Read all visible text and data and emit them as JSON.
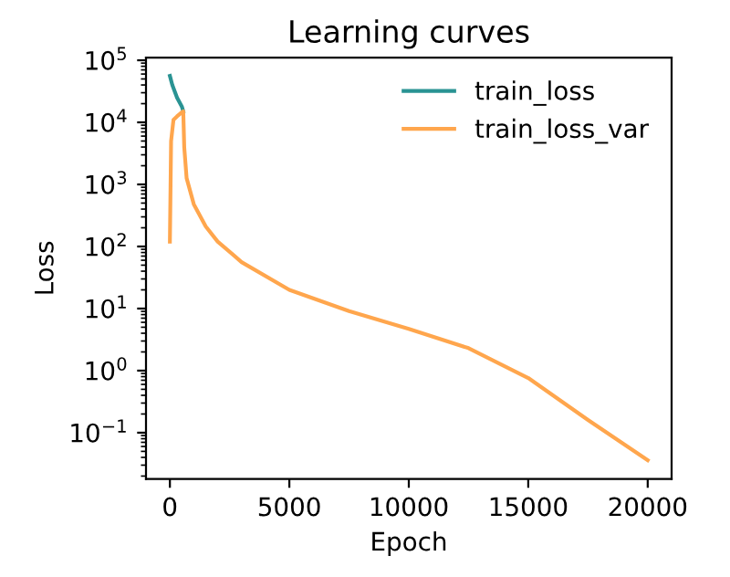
{
  "chart_data": {
    "type": "line",
    "title": "Learning curves",
    "xlabel": "Epoch",
    "ylabel": "Loss",
    "log": "y",
    "xlim": [
      -1000,
      21000
    ],
    "xticks": [
      0,
      5000,
      10000,
      15000,
      20000
    ],
    "ylim": [
      0.018,
      110000
    ],
    "yticks": [
      {
        "value": 0.1,
        "label": "10$^{−1}$"
      },
      {
        "value": 1,
        "label": "10$^{0}$"
      },
      {
        "value": 10,
        "label": "10$^{1}$"
      },
      {
        "value": 100,
        "label": "10$^{2}$"
      },
      {
        "value": 1000,
        "label": "10$^{3}$"
      },
      {
        "value": 10000,
        "label": "10$^{4}$"
      },
      {
        "value": 100000,
        "label": "10$^{5}$"
      }
    ],
    "legend": "top right",
    "grid": false,
    "series": [
      {
        "name": "train_loss",
        "color": "#2a9393",
        "x": [
          0,
          100,
          300,
          500,
          560
        ],
        "values": [
          56000,
          40000,
          25000,
          18000,
          15000
        ]
      },
      {
        "name": "train_loss_var",
        "color": "#ffa64d",
        "x": [
          0,
          50,
          150,
          300,
          450,
          560,
          600,
          700,
          1000,
          1500,
          2000,
          3000,
          5000,
          7500,
          10000,
          12500,
          15000,
          17500,
          20000
        ],
        "values": [
          120,
          5000,
          11000,
          12500,
          14000,
          15000,
          4000,
          1260,
          480,
          210,
          120,
          56,
          20,
          9.1,
          4.7,
          2.3,
          0.76,
          0.16,
          0.036
        ]
      }
    ]
  }
}
